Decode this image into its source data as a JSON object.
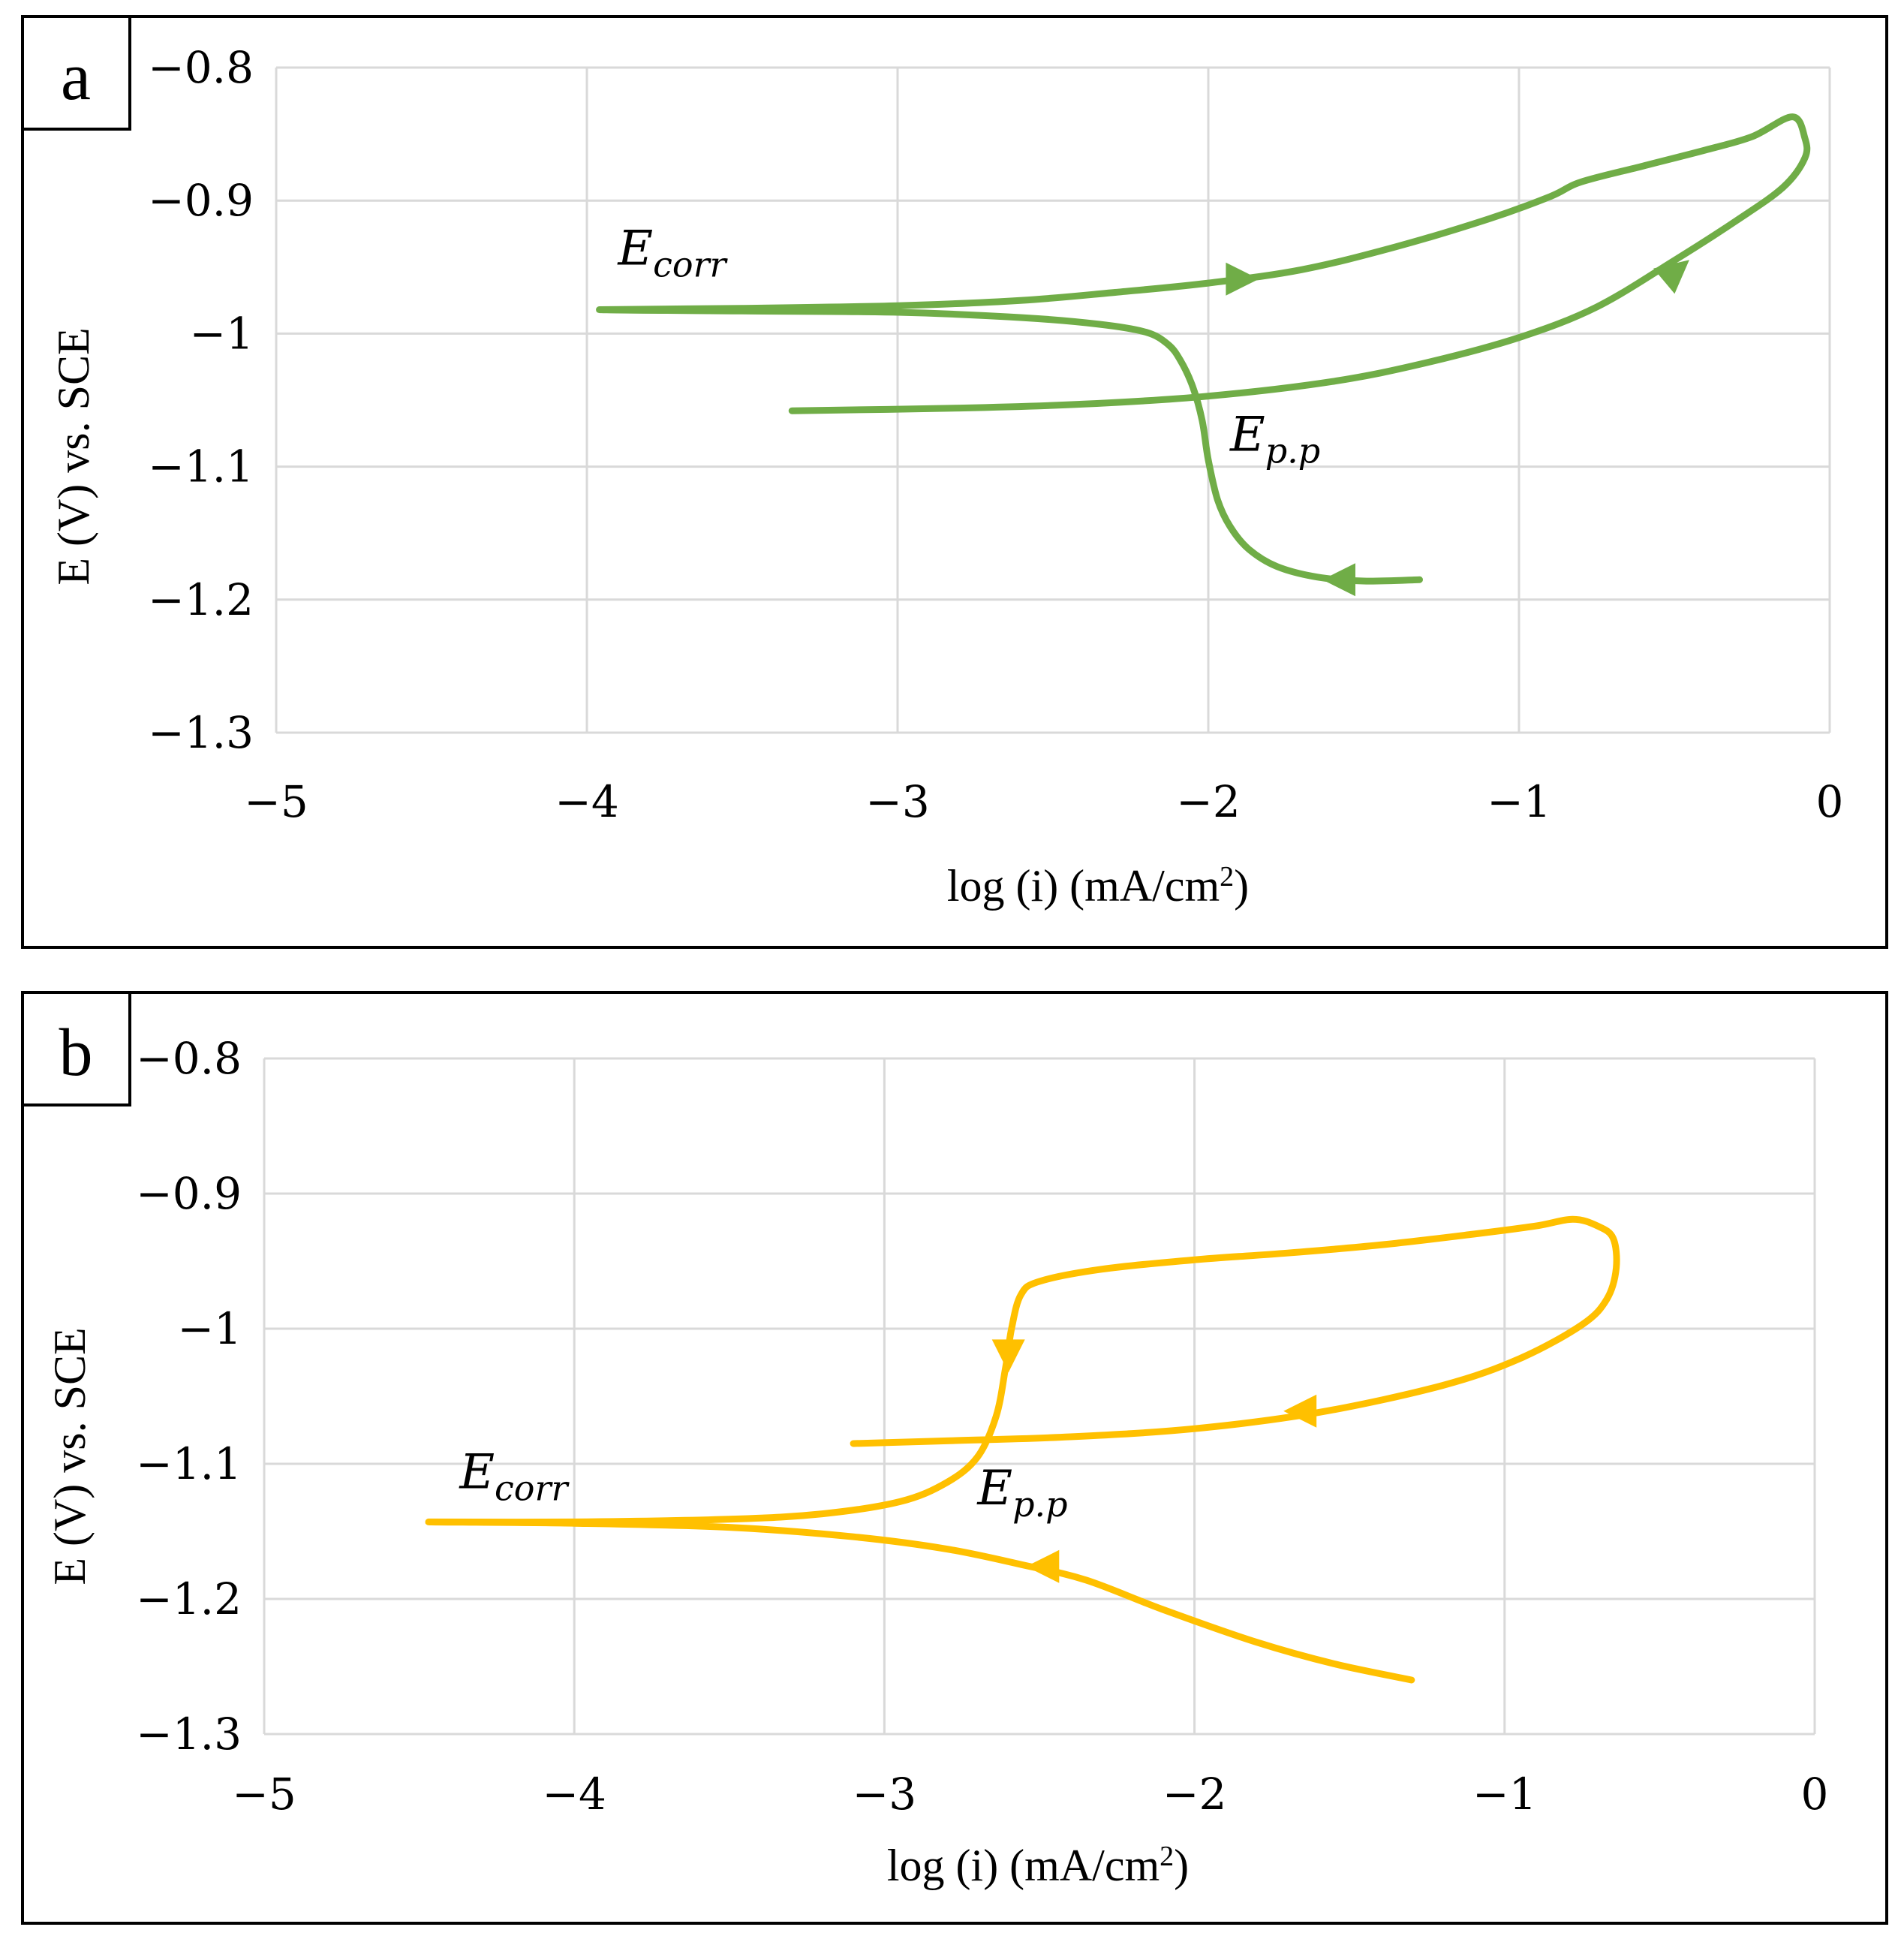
{
  "chart_data": [
    {
      "type": "line",
      "panel_label": "a",
      "xlabel": "log (i) (mA/cm",
      "xlabel_sup": "2",
      "xlabel_end": ")",
      "ylabel": "E (V) vs. SCE",
      "xlim": [
        -5,
        0
      ],
      "ylim": [
        -1.3,
        -0.8
      ],
      "x_ticks": [
        -5,
        -4,
        -3,
        -2,
        -1,
        0
      ],
      "y_ticks": [
        -1.3,
        -1.2,
        -1.1,
        -1.0,
        -0.9,
        -0.8
      ],
      "x_tick_labels": [
        "−5",
        "−4",
        "−3",
        "−2",
        "−1",
        "0"
      ],
      "y_tick_labels": [
        "−1.3",
        "−1.2",
        "−1.1",
        "−1",
        "−0.9",
        "−0.8"
      ],
      "grid": true,
      "color": "#70ad47",
      "annotations": [
        {
          "main": "E",
          "sub": "corr",
          "x": -3.9,
          "y": -0.948
        },
        {
          "main": "E",
          "sub": "p.p",
          "x": -1.93,
          "y": -1.088
        }
      ],
      "arrows": [
        {
          "x": -1.9,
          "y": -0.959,
          "dir": "right"
        },
        {
          "x": -0.5,
          "y": -0.954,
          "dir": "up-right"
        },
        {
          "x": -1.57,
          "y": -1.185,
          "dir": "left"
        }
      ],
      "series": [
        {
          "values": [
            [
              -1.32,
              -1.185
            ],
            [
              -1.5,
              -1.186
            ],
            [
              -1.65,
              -1.183
            ],
            [
              -1.78,
              -1.175
            ],
            [
              -1.87,
              -1.162
            ],
            [
              -1.93,
              -1.145
            ],
            [
              -1.97,
              -1.125
            ],
            [
              -2.0,
              -1.095
            ],
            [
              -2.02,
              -1.065
            ],
            [
              -2.05,
              -1.04
            ],
            [
              -2.09,
              -1.02
            ],
            [
              -2.13,
              -1.008
            ],
            [
              -2.2,
              -0.999
            ],
            [
              -2.35,
              -0.993
            ],
            [
              -2.6,
              -0.988
            ],
            [
              -3.0,
              -0.984
            ],
            [
              -3.5,
              -0.983
            ],
            [
              -3.96,
              -0.982
            ],
            [
              -3.5,
              -0.981
            ],
            [
              -3.0,
              -0.979
            ],
            [
              -2.6,
              -0.975
            ],
            [
              -2.3,
              -0.969
            ],
            [
              -2.0,
              -0.962
            ],
            [
              -1.7,
              -0.952
            ],
            [
              -1.4,
              -0.935
            ],
            [
              -1.1,
              -0.914
            ],
            [
              -0.9,
              -0.897
            ],
            [
              -0.8,
              -0.886
            ],
            [
              -0.6,
              -0.874
            ],
            [
              -0.4,
              -0.862
            ],
            [
              -0.25,
              -0.852
            ],
            [
              -0.12,
              -0.837
            ],
            [
              -0.08,
              -0.853
            ],
            [
              -0.08,
              -0.868
            ],
            [
              -0.15,
              -0.89
            ],
            [
              -0.3,
              -0.915
            ],
            [
              -0.5,
              -0.945
            ],
            [
              -0.75,
              -0.98
            ],
            [
              -1.0,
              -1.003
            ],
            [
              -1.3,
              -1.022
            ],
            [
              -1.6,
              -1.036
            ],
            [
              -2.0,
              -1.047
            ],
            [
              -2.4,
              -1.053
            ],
            [
              -2.8,
              -1.056
            ],
            [
              -3.34,
              -1.058
            ]
          ]
        }
      ]
    },
    {
      "type": "line",
      "panel_label": "b",
      "xlabel": "log (i) (mA/cm",
      "xlabel_sup": "2",
      "xlabel_end": ")",
      "ylabel": "E (V) vs. SCE",
      "xlim": [
        -5,
        0
      ],
      "ylim": [
        -1.3,
        -0.8
      ],
      "x_ticks": [
        -5,
        -4,
        -3,
        -2,
        -1,
        0
      ],
      "y_ticks": [
        -1.3,
        -1.2,
        -1.1,
        -1.0,
        -0.9,
        -0.8
      ],
      "x_tick_labels": [
        "−5",
        "−4",
        "−3",
        "−2",
        "−1",
        "0"
      ],
      "y_tick_labels": [
        "−1.3",
        "−1.2",
        "−1.1",
        "−1",
        "−0.9",
        "−0.8"
      ],
      "grid": true,
      "color": "#ffc000",
      "annotations": [
        {
          "main": "E",
          "sub": "corr",
          "x": -4.37,
          "y": -1.118
        },
        {
          "main": "E",
          "sub": "p.p",
          "x": -2.7,
          "y": -1.13
        }
      ],
      "arrows": [
        {
          "x": -2.6,
          "y": -1.018,
          "dir": "down"
        },
        {
          "x": -1.65,
          "y": -1.061,
          "dir": "left"
        },
        {
          "x": -2.48,
          "y": -1.176,
          "dir": "left"
        }
      ],
      "series": [
        {
          "values": [
            [
              -1.3,
              -1.26
            ],
            [
              -1.55,
              -1.248
            ],
            [
              -1.8,
              -1.232
            ],
            [
              -2.1,
              -1.208
            ],
            [
              -2.35,
              -1.186
            ],
            [
              -2.55,
              -1.175
            ],
            [
              -2.8,
              -1.163
            ],
            [
              -3.1,
              -1.154
            ],
            [
              -3.5,
              -1.147
            ],
            [
              -4.0,
              -1.144
            ],
            [
              -4.47,
              -1.143
            ],
            [
              -4.0,
              -1.143
            ],
            [
              -3.5,
              -1.141
            ],
            [
              -3.2,
              -1.137
            ],
            [
              -2.95,
              -1.128
            ],
            [
              -2.8,
              -1.114
            ],
            [
              -2.7,
              -1.095
            ],
            [
              -2.64,
              -1.065
            ],
            [
              -2.61,
              -1.03
            ],
            [
              -2.59,
              -1.0
            ],
            [
              -2.56,
              -0.975
            ],
            [
              -2.5,
              -0.965
            ],
            [
              -2.3,
              -0.956
            ],
            [
              -2.0,
              -0.949
            ],
            [
              -1.7,
              -0.944
            ],
            [
              -1.4,
              -0.938
            ],
            [
              -1.1,
              -0.93
            ],
            [
              -0.9,
              -0.924
            ],
            [
              -0.78,
              -0.919
            ],
            [
              -0.7,
              -0.924
            ],
            [
              -0.65,
              -0.933
            ],
            [
              -0.64,
              -0.955
            ],
            [
              -0.67,
              -0.978
            ],
            [
              -0.75,
              -0.997
            ],
            [
              -0.95,
              -1.022
            ],
            [
              -1.2,
              -1.042
            ],
            [
              -1.6,
              -1.062
            ],
            [
              -2.0,
              -1.074
            ],
            [
              -2.4,
              -1.08
            ],
            [
              -2.8,
              -1.083
            ],
            [
              -3.1,
              -1.085
            ]
          ]
        }
      ]
    }
  ]
}
